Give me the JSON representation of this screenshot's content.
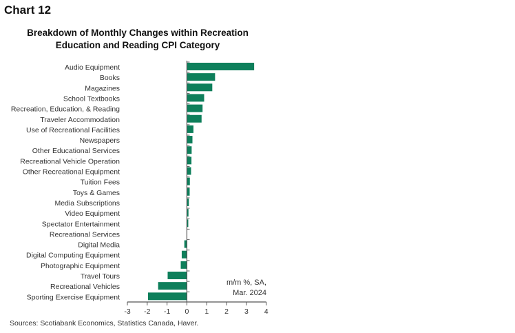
{
  "header": "Chart 12",
  "chart_data": {
    "type": "bar",
    "orientation": "horizontal",
    "title": "Breakdown of Monthly Changes within Recreation Education and Reading CPI Category",
    "title_lines": [
      "Breakdown of Monthly Changes within Recreation",
      "Education and Reading CPI Category"
    ],
    "categories": [
      "Audio Equipment",
      "Books",
      "Magazines",
      "School Textbooks",
      "Recreation, Education, & Reading",
      "Traveler Accommodation",
      "Use of Recreational Facilities",
      "Newspapers",
      "Other Educational Services",
      "Recreational Vehicle Operation",
      "Other Recreational Equipment",
      "Tuition Fees",
      "Toys & Games",
      "Media Subscriptions",
      "Video Equipment",
      "Spectator Entertainment",
      "Recreational Services",
      "Digital Media",
      "Digital Computing Equipment",
      "Photographic Equipment",
      "Travel Tours",
      "Recreational Vehicles",
      "Sporting Exercise Equipment"
    ],
    "values": [
      3.39,
      1.42,
      1.28,
      0.87,
      0.79,
      0.74,
      0.33,
      0.28,
      0.24,
      0.23,
      0.21,
      0.15,
      0.14,
      0.1,
      0.08,
      0.07,
      0.0,
      -0.13,
      -0.26,
      -0.31,
      -0.97,
      -1.45,
      -1.96
    ],
    "xlim": [
      -3,
      4
    ],
    "xticks": [
      "-3",
      "-2",
      "-1",
      "0",
      "1",
      "2",
      "3",
      "4"
    ],
    "annotation": [
      "m/m %, SA,",
      "Mar. 2024"
    ],
    "source": "Sources: Scotiabank Economics, Statistics Canada, Haver.",
    "grid": false,
    "color": "#0e7f5b"
  }
}
